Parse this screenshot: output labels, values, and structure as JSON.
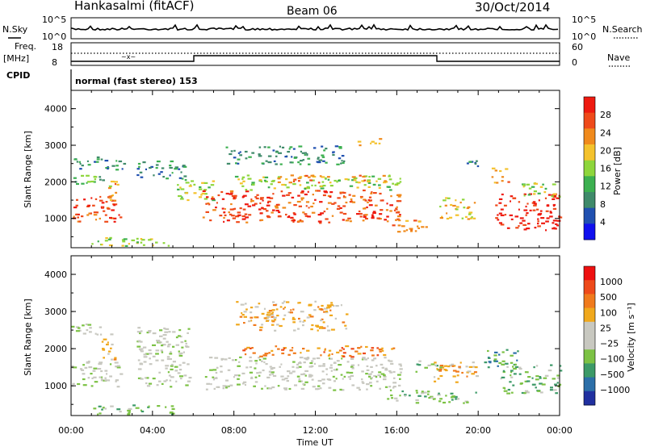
{
  "header": {
    "station": "Hankasalmi (fitACF)",
    "beam": "Beam 06",
    "date": "30/Oct/2014"
  },
  "noise_panel": {
    "left_label": "N.Sky",
    "right_label": "N.Search",
    "left_ticks": [
      "10^5",
      "10^0"
    ],
    "right_ticks": [
      "10^5",
      "10^0"
    ]
  },
  "freq_panel": {
    "left_label_1": "Freq.",
    "left_label_2": "[MHz]",
    "right_label": "Nave",
    "left_ticks": [
      "18",
      "8"
    ],
    "right_ticks": [
      "60",
      "0"
    ]
  },
  "cpid": {
    "label": "CPID",
    "value": "normal (fast stereo) 153"
  },
  "colors": {
    "power": [
      "#1010ee",
      "#2050b0",
      "#3f8a6a",
      "#3cb050",
      "#8ed63c",
      "#f4c22c",
      "#f08a1c",
      "#ef4a1a",
      "#ee1a10"
    ],
    "velocity": [
      "#2030a0",
      "#2c6fa8",
      "#3c9a68",
      "#7cc244",
      "#c8c8c0",
      "#c8c8c0",
      "#f0a81c",
      "#f07a1c",
      "#ee4a1a",
      "#ee1010"
    ]
  },
  "chart_data": [
    {
      "type": "heatmap",
      "panel": "power",
      "xlabel": "",
      "ylabel": "Slant Range [km]",
      "xlim": [
        0,
        24
      ],
      "ylim": [
        200,
        4500
      ],
      "yticks": [
        "1000",
        "2000",
        "3000",
        "4000"
      ],
      "colorbar": {
        "label": "Power [dB]",
        "range": [
          0,
          32
        ],
        "ticks": [
          "4",
          "8",
          "12",
          "16",
          "20",
          "24",
          "28"
        ]
      },
      "bands": [
        {
          "t0": 0.0,
          "t1": 2.4,
          "r0": 900,
          "r1": 1650,
          "level": 7
        },
        {
          "t0": 0.1,
          "t1": 2.6,
          "r0": 2350,
          "r1": 2700,
          "level": 2
        },
        {
          "t0": 0.0,
          "t1": 2.0,
          "r0": 1900,
          "r1": 2200,
          "level": 3
        },
        {
          "t0": 1.8,
          "t1": 2.3,
          "r0": 1500,
          "r1": 2300,
          "level": 6
        },
        {
          "t0": 3.2,
          "t1": 5.6,
          "r0": 2100,
          "r1": 2600,
          "level": 2
        },
        {
          "t0": 5.2,
          "t1": 7.0,
          "r0": 1500,
          "r1": 2100,
          "level": 4
        },
        {
          "t0": 6.4,
          "t1": 16.2,
          "r0": 900,
          "r1": 1800,
          "level": 7
        },
        {
          "t0": 8.0,
          "t1": 16.2,
          "r0": 1800,
          "r1": 2200,
          "level": 4
        },
        {
          "t0": 7.5,
          "t1": 13.5,
          "r0": 2500,
          "r1": 3000,
          "level": 2
        },
        {
          "t0": 10.0,
          "t1": 15.5,
          "r0": 2000,
          "r1": 2200,
          "level": 6
        },
        {
          "t0": 14.0,
          "t1": 15.2,
          "r0": 3000,
          "r1": 3200,
          "level": 6
        },
        {
          "t0": 15.5,
          "t1": 17.5,
          "r0": 650,
          "r1": 1000,
          "level": 6
        },
        {
          "t0": 18.0,
          "t1": 19.8,
          "r0": 1000,
          "r1": 1600,
          "level": 5
        },
        {
          "t0": 19.3,
          "t1": 20.0,
          "r0": 2300,
          "r1": 2700,
          "level": 2
        },
        {
          "t0": 20.6,
          "t1": 21.5,
          "r0": 2000,
          "r1": 2400,
          "level": 6
        },
        {
          "t0": 20.8,
          "t1": 24.0,
          "r0": 700,
          "r1": 1700,
          "level": 8
        },
        {
          "t0": 22.0,
          "t1": 24.0,
          "r0": 1600,
          "r1": 2000,
          "level": 4
        },
        {
          "t0": 1.0,
          "t1": 5.0,
          "r0": 250,
          "r1": 500,
          "level": 4
        }
      ]
    },
    {
      "type": "heatmap",
      "panel": "velocity",
      "xlabel": "Time UT",
      "ylabel": "Slant Range [km]",
      "xlim": [
        0,
        24
      ],
      "ylim": [
        200,
        4500
      ],
      "yticks": [
        "1000",
        "2000",
        "3000",
        "4000"
      ],
      "xticks": [
        "00:00",
        "04:00",
        "08:00",
        "12:00",
        "16:00",
        "20:00",
        "00:00"
      ],
      "colorbar": {
        "label": "Velocity [m s⁻¹]",
        "ticks": [
          "1000",
          "500",
          "100",
          "25",
          "−25",
          "−100",
          "−500",
          "−1000"
        ]
      },
      "bands": [
        {
          "t0": 0.0,
          "t1": 2.4,
          "r0": 1000,
          "r1": 1700,
          "level": 4
        },
        {
          "t0": 0.0,
          "t1": 2.0,
          "r0": 2400,
          "r1": 2700,
          "level": 4
        },
        {
          "t0": 1.5,
          "t1": 2.3,
          "r0": 1700,
          "r1": 2300,
          "level": 6
        },
        {
          "t0": 3.2,
          "t1": 5.8,
          "r0": 1000,
          "r1": 2600,
          "level": 4
        },
        {
          "t0": 6.5,
          "t1": 16.2,
          "r0": 900,
          "r1": 1800,
          "level": 4
        },
        {
          "t0": 8.0,
          "t1": 15.8,
          "r0": 1800,
          "r1": 2100,
          "level": 7
        },
        {
          "t0": 8.0,
          "t1": 13.5,
          "r0": 2500,
          "r1": 3300,
          "level": 6
        },
        {
          "t0": 16.8,
          "t1": 18.2,
          "r0": 1400,
          "r1": 1700,
          "level": 3
        },
        {
          "t0": 17.8,
          "t1": 20.0,
          "r0": 1100,
          "r1": 1700,
          "level": 6
        },
        {
          "t0": 20.2,
          "t1": 22.0,
          "r0": 1500,
          "r1": 2000,
          "level": 2
        },
        {
          "t0": 21.0,
          "t1": 24.0,
          "r0": 800,
          "r1": 1600,
          "level": 3
        },
        {
          "t0": 15.5,
          "t1": 20.0,
          "r0": 550,
          "r1": 900,
          "level": 3
        },
        {
          "t0": 1.0,
          "t1": 5.0,
          "r0": 250,
          "r1": 500,
          "level": 3
        }
      ]
    }
  ]
}
